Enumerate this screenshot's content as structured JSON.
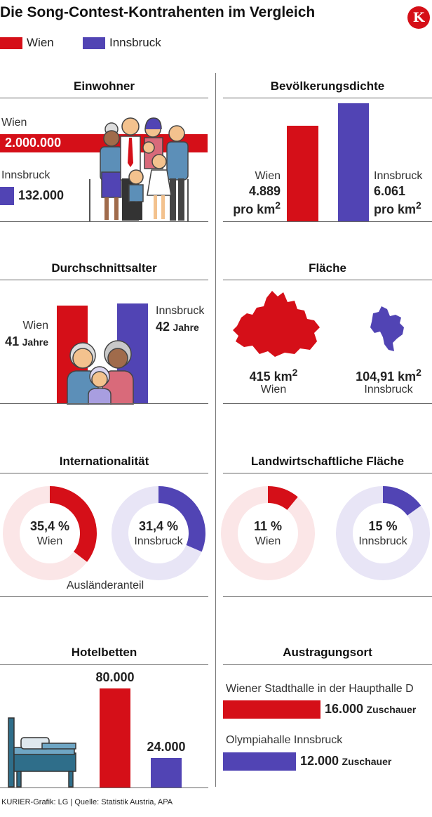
{
  "header": {
    "title": "Die Song-Contest-Kontrahenten im Vergleich",
    "logo_letter": "K"
  },
  "legend": [
    {
      "name": "Wien",
      "color": "#d50f18"
    },
    {
      "name": "Innsbruck",
      "color": "#5144b4"
    }
  ],
  "colors": {
    "wien": "#d50f18",
    "innsbruck": "#5144b4",
    "wien_light": "#fbe6e7",
    "innsbruck_light": "#e8e5f6"
  },
  "panels": {
    "einwohner": {
      "title": "Einwohner",
      "wien_label": "Wien",
      "wien_value_text": "2.000.000",
      "innsbruck_label": "Innsbruck",
      "innsbruck_value_text": "132.000",
      "icon": "family-illustration"
    },
    "dichte": {
      "title": "Bevölkerungsdichte",
      "wien_label": "Wien",
      "wien_value_text": "4.889",
      "innsbruck_label": "Innsbruck",
      "innsbruck_value_text": "6.061",
      "unit_text": "pro km",
      "unit_sup": "2"
    },
    "alter": {
      "title": "Durchschnittsalter",
      "wien_label": "Wien",
      "wien_value_num": "41",
      "innsbruck_label": "Innsbruck",
      "innsbruck_value_num": "42",
      "unit_text": "Jahre",
      "icon": "family-faces-illustration"
    },
    "flaeche": {
      "title": "Fläche",
      "wien_value_text": "415 km",
      "wien_label": "Wien",
      "innsbruck_value_text": "104,91 km",
      "innsbruck_label": "Innsbruck",
      "unit_sup": "2",
      "icon": "city-shape-maps"
    },
    "international": {
      "title": "Internationalität",
      "wien_value_text": "35,4 %",
      "wien_label": "Wien",
      "innsbruck_value_text": "31,4 %",
      "innsbruck_label": "Innsbruck",
      "caption": "Ausländeranteil"
    },
    "landwirtschaft": {
      "title": "Landwirtschaftliche Fläche",
      "wien_value_text": "11 %",
      "wien_label": "Wien",
      "innsbruck_value_text": "15 %",
      "innsbruck_label": "Innsbruck"
    },
    "hotel": {
      "title": "Hotelbetten",
      "wien_value_text": "80.000",
      "innsbruck_value_text": "24.000",
      "icon": "bed-icon"
    },
    "ort": {
      "title": "Austragungsort",
      "wien_venue": "Wiener Stadthalle in der Haupthalle D",
      "wien_value_num": "16.000",
      "innsbruck_venue": "Olympiahalle Innsbruck",
      "innsbruck_value_num": "12.000",
      "unit_text": "Zuschauer"
    }
  },
  "footer": {
    "credit": "KURIER-Grafik: LG | Quelle: Statistik Austria, APA"
  },
  "chart_data": [
    {
      "type": "bar",
      "title": "Einwohner",
      "categories": [
        "Wien",
        "Innsbruck"
      ],
      "values": [
        2000000,
        132000
      ]
    },
    {
      "type": "bar",
      "title": "Bevölkerungsdichte",
      "categories": [
        "Wien",
        "Innsbruck"
      ],
      "values": [
        4889,
        6061
      ],
      "unit": "pro km²"
    },
    {
      "type": "bar",
      "title": "Durchschnittsalter",
      "categories": [
        "Wien",
        "Innsbruck"
      ],
      "values": [
        41,
        42
      ],
      "unit": "Jahre"
    },
    {
      "type": "table",
      "title": "Fläche",
      "categories": [
        "Wien",
        "Innsbruck"
      ],
      "values": [
        415,
        104.91
      ],
      "unit": "km²"
    },
    {
      "type": "pie",
      "title": "Internationalität",
      "subtitle": "Ausländeranteil",
      "categories": [
        "Wien",
        "Innsbruck"
      ],
      "values": [
        35.4,
        31.4
      ],
      "unit": "%"
    },
    {
      "type": "pie",
      "title": "Landwirtschaftliche Fläche",
      "categories": [
        "Wien",
        "Innsbruck"
      ],
      "values": [
        11,
        15
      ],
      "unit": "%"
    },
    {
      "type": "bar",
      "title": "Hotelbetten",
      "categories": [
        "Wien",
        "Innsbruck"
      ],
      "values": [
        80000,
        24000
      ]
    },
    {
      "type": "bar",
      "title": "Austragungsort",
      "categories": [
        "Wiener Stadthalle in der Haupthalle D",
        "Olympiahalle Innsbruck"
      ],
      "values": [
        16000,
        12000
      ],
      "unit": "Zuschauer"
    }
  ]
}
